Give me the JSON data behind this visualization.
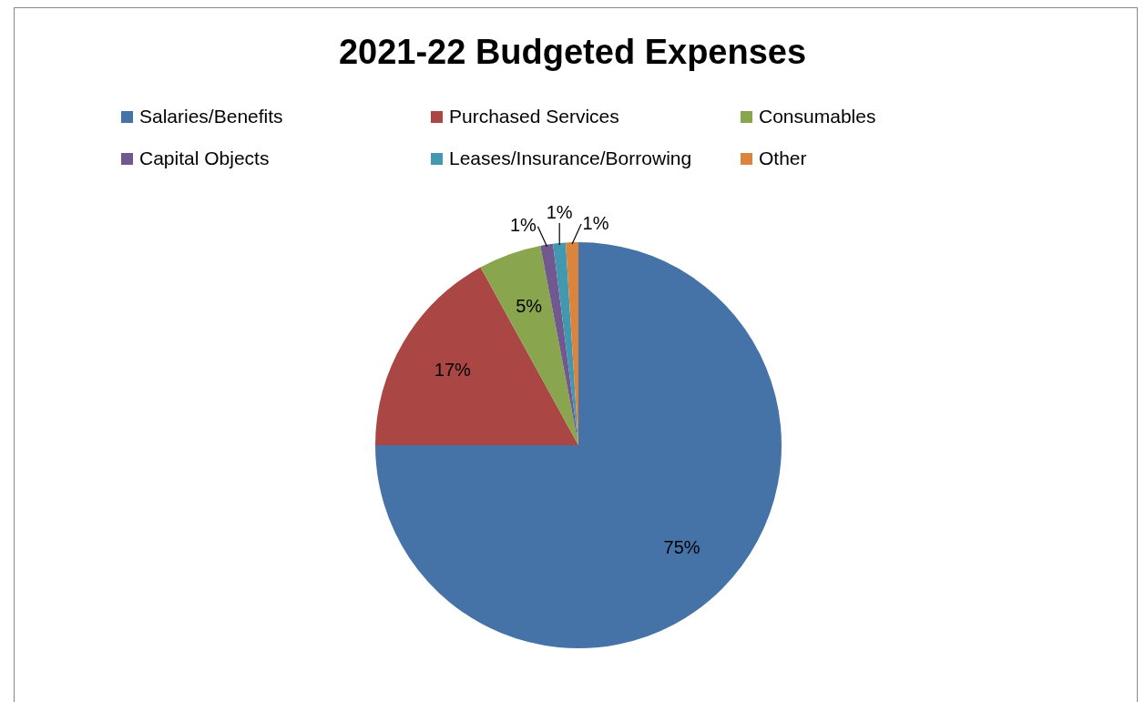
{
  "chart_data": {
    "type": "pie",
    "title": "2021-22 Budgeted Expenses",
    "categories": [
      "Salaries/Benefits",
      "Purchased Services",
      "Consumables",
      "Capital Objects",
      "Leases/Insurance/Borrowing",
      "Other"
    ],
    "values": [
      75,
      17,
      5,
      1,
      1,
      1
    ],
    "colors": [
      "#4572a7",
      "#aa4643",
      "#89a54e",
      "#71588f",
      "#4198af",
      "#db843d"
    ],
    "value_labels": [
      "75%",
      "17%",
      "5%",
      "1%",
      "1%",
      "1%"
    ],
    "legend": "top"
  }
}
